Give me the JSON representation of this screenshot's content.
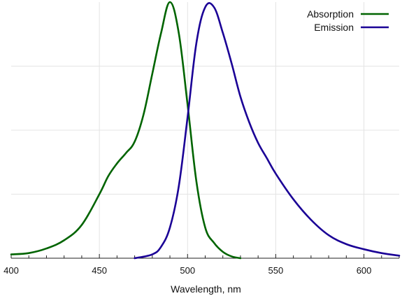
{
  "chart_data": {
    "type": "line",
    "title": "",
    "xlabel": "Wavelength, nm",
    "ylabel": "",
    "xlim": [
      400,
      620
    ],
    "ylim": [
      0,
      1
    ],
    "grid": true,
    "legend_position": "top-right",
    "x_ticks": [
      400,
      450,
      500,
      550,
      600
    ],
    "x_tick_labels": [
      "400",
      "450",
      "500",
      "550",
      "600"
    ],
    "series": [
      {
        "name": "Absorption",
        "color": "#006400",
        "x": [
          400,
          410,
          420,
          430,
          440,
          450,
          455,
          460,
          465,
          470,
          475,
          480,
          485,
          490,
          495,
          500,
          505,
          510,
          515,
          520,
          525,
          530
        ],
        "y": [
          0.015,
          0.02,
          0.038,
          0.07,
          0.13,
          0.25,
          0.32,
          0.37,
          0.41,
          0.455,
          0.56,
          0.72,
          0.88,
          1.0,
          0.88,
          0.6,
          0.3,
          0.12,
          0.06,
          0.025,
          0.007,
          0.0
        ]
      },
      {
        "name": "Emission",
        "color": "#1a0096",
        "x": [
          470,
          480,
          485,
          490,
          495,
          500,
          505,
          510,
          515,
          520,
          525,
          530,
          535,
          540,
          545,
          550,
          560,
          570,
          580,
          590,
          600,
          610,
          620
        ],
        "y": [
          0.0,
          0.015,
          0.045,
          0.12,
          0.28,
          0.55,
          0.84,
          0.98,
          0.98,
          0.88,
          0.76,
          0.63,
          0.53,
          0.45,
          0.39,
          0.33,
          0.23,
          0.15,
          0.09,
          0.055,
          0.035,
          0.02,
          0.01
        ]
      }
    ]
  }
}
